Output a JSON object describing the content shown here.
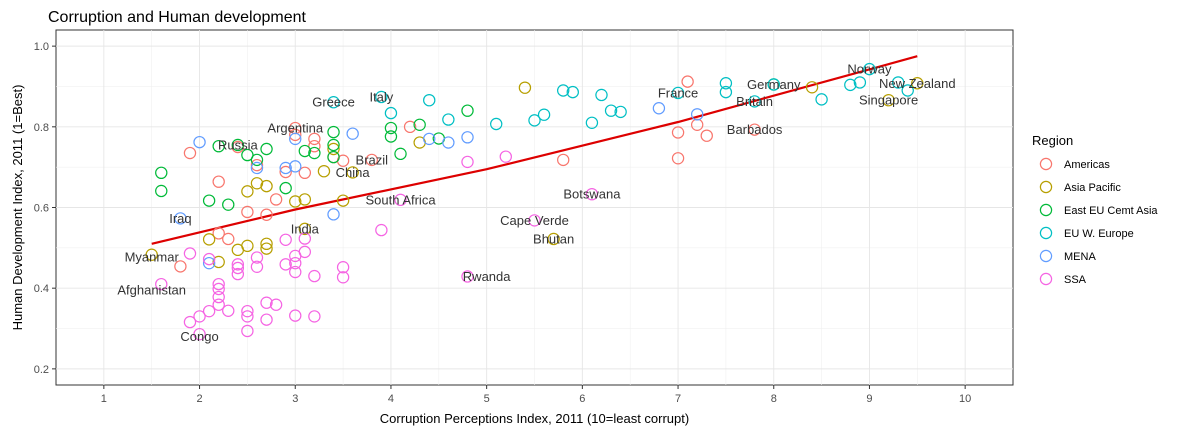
{
  "chart_data": {
    "type": "scatter",
    "title": "Corruption and Human development",
    "xlabel": "Corruption Perceptions Index, 2011 (10=least corrupt)",
    "ylabel": "Human Development Index, 2011 (1=Best)",
    "xlim": [
      0.5,
      10.5
    ],
    "ylim": [
      0.16,
      1.04
    ],
    "xticks": [
      1,
      2,
      3,
      4,
      5,
      6,
      7,
      8,
      9,
      10
    ],
    "yticks": [
      0.2,
      0.4,
      0.6,
      0.8,
      1.0
    ],
    "ytick_labels": [
      "0.2",
      "0.4",
      "0.6",
      "0.8",
      "1.0"
    ],
    "grid": true,
    "legend": {
      "title": "Region",
      "position": "right",
      "entries": [
        {
          "name": "Americas",
          "color": "#F8766D"
        },
        {
          "name": "Asia Pacific",
          "color": "#B79F00"
        },
        {
          "name": "East EU Cemt Asia",
          "color": "#00BA38"
        },
        {
          "name": "EU W. Europe",
          "color": "#00BFC4"
        },
        {
          "name": "MENA",
          "color": "#619CFF"
        },
        {
          "name": "SSA",
          "color": "#F564E3"
        }
      ]
    },
    "trend_line": {
      "color": "#DD0000",
      "points": [
        [
          1.5,
          0.51
        ],
        [
          3,
          0.595
        ],
        [
          5,
          0.695
        ],
        [
          7,
          0.812
        ],
        [
          9.5,
          0.975
        ]
      ]
    },
    "annotations": [
      {
        "text": "Congo",
        "x": 2.0,
        "y": 0.28
      },
      {
        "text": "Afghanistan",
        "x": 1.5,
        "y": 0.395
      },
      {
        "text": "Myanmar",
        "x": 1.5,
        "y": 0.477
      },
      {
        "text": "Iraq",
        "x": 1.8,
        "y": 0.573
      },
      {
        "text": "India",
        "x": 3.1,
        "y": 0.547
      },
      {
        "text": "Russia",
        "x": 2.4,
        "y": 0.755
      },
      {
        "text": "Argentina",
        "x": 3.0,
        "y": 0.797
      },
      {
        "text": "Greece",
        "x": 3.4,
        "y": 0.861
      },
      {
        "text": "Italy",
        "x": 3.9,
        "y": 0.874
      },
      {
        "text": "Brazil",
        "x": 3.8,
        "y": 0.718
      },
      {
        "text": "China",
        "x": 3.6,
        "y": 0.687
      },
      {
        "text": "South Africa",
        "x": 4.1,
        "y": 0.619
      },
      {
        "text": "Rwanda",
        "x": 5.0,
        "y": 0.429
      },
      {
        "text": "Cape Verde",
        "x": 5.5,
        "y": 0.568
      },
      {
        "text": "Bhutan",
        "x": 5.7,
        "y": 0.522
      },
      {
        "text": "Botswana",
        "x": 6.1,
        "y": 0.633
      },
      {
        "text": "France",
        "x": 7.0,
        "y": 0.884
      },
      {
        "text": "Britain",
        "x": 7.8,
        "y": 0.863
      },
      {
        "text": "Barbados",
        "x": 7.8,
        "y": 0.793
      },
      {
        "text": "Germany",
        "x": 8.0,
        "y": 0.905
      },
      {
        "text": "Norway",
        "x": 9.0,
        "y": 0.943
      },
      {
        "text": "New Zealand",
        "x": 9.5,
        "y": 0.908
      },
      {
        "text": "Singapore",
        "x": 9.2,
        "y": 0.866
      }
    ],
    "series": [
      {
        "name": "Americas",
        "color": "#F8766D",
        "points": [
          [
            1.8,
            0.454
          ],
          [
            1.9,
            0.735
          ],
          [
            2.2,
            0.664
          ],
          [
            2.2,
            0.536
          ],
          [
            2.3,
            0.522
          ],
          [
            2.4,
            0.75
          ],
          [
            2.5,
            0.589
          ],
          [
            2.6,
            0.705
          ],
          [
            2.7,
            0.582
          ],
          [
            2.8,
            0.62
          ],
          [
            2.9,
            0.688
          ],
          [
            3.0,
            0.797
          ],
          [
            3.0,
            0.78
          ],
          [
            3.1,
            0.686
          ],
          [
            3.2,
            0.77
          ],
          [
            3.2,
            0.752
          ],
          [
            3.4,
            0.725
          ],
          [
            3.5,
            0.716
          ],
          [
            3.8,
            0.718
          ],
          [
            4.2,
            0.8
          ],
          [
            5.8,
            0.718
          ],
          [
            7.0,
            0.786
          ],
          [
            7.0,
            0.722
          ],
          [
            7.1,
            0.912
          ],
          [
            7.2,
            0.805
          ],
          [
            7.3,
            0.778
          ],
          [
            7.8,
            0.793
          ]
        ]
      },
      {
        "name": "Asia Pacific",
        "color": "#B79F00",
        "points": [
          [
            1.5,
            0.483
          ],
          [
            2.1,
            0.521
          ],
          [
            2.2,
            0.465
          ],
          [
            2.4,
            0.495
          ],
          [
            2.5,
            0.64
          ],
          [
            2.5,
            0.505
          ],
          [
            2.6,
            0.66
          ],
          [
            2.7,
            0.653
          ],
          [
            2.7,
            0.51
          ],
          [
            2.7,
            0.498
          ],
          [
            3.0,
            0.615
          ],
          [
            3.1,
            0.62
          ],
          [
            3.1,
            0.547
          ],
          [
            3.3,
            0.69
          ],
          [
            3.4,
            0.745
          ],
          [
            3.5,
            0.617
          ],
          [
            3.6,
            0.687
          ],
          [
            4.3,
            0.761
          ],
          [
            5.4,
            0.897
          ],
          [
            5.7,
            0.522
          ],
          [
            8.4,
            0.898
          ],
          [
            9.2,
            0.866
          ],
          [
            9.5,
            0.908
          ]
        ]
      },
      {
        "name": "East EU Cemt Asia",
        "color": "#00BA38",
        "points": [
          [
            1.6,
            0.686
          ],
          [
            1.6,
            0.641
          ],
          [
            2.1,
            0.617
          ],
          [
            2.2,
            0.752
          ],
          [
            2.3,
            0.607
          ],
          [
            2.4,
            0.755
          ],
          [
            2.5,
            0.73
          ],
          [
            2.6,
            0.718
          ],
          [
            2.7,
            0.745
          ],
          [
            2.9,
            0.648
          ],
          [
            3.1,
            0.74
          ],
          [
            3.2,
            0.735
          ],
          [
            3.4,
            0.787
          ],
          [
            3.4,
            0.755
          ],
          [
            3.4,
            0.725
          ],
          [
            4.0,
            0.797
          ],
          [
            4.0,
            0.776
          ],
          [
            4.1,
            0.733
          ],
          [
            4.3,
            0.805
          ],
          [
            4.5,
            0.771
          ],
          [
            4.8,
            0.84
          ],
          [
            8.0,
            0.905
          ]
        ]
      },
      {
        "name": "EU W. Europe",
        "color": "#00BFC4",
        "points": [
          [
            3.4,
            0.861
          ],
          [
            3.9,
            0.874
          ],
          [
            4.0,
            0.834
          ],
          [
            4.4,
            0.866
          ],
          [
            4.6,
            0.818
          ],
          [
            5.1,
            0.807
          ],
          [
            5.5,
            0.816
          ],
          [
            5.6,
            0.83
          ],
          [
            5.8,
            0.89
          ],
          [
            5.9,
            0.886
          ],
          [
            6.1,
            0.81
          ],
          [
            6.2,
            0.879
          ],
          [
            6.3,
            0.84
          ],
          [
            6.4,
            0.837
          ],
          [
            7.0,
            0.884
          ],
          [
            7.5,
            0.908
          ],
          [
            7.5,
            0.886
          ],
          [
            7.8,
            0.863
          ],
          [
            8.0,
            0.905
          ],
          [
            8.5,
            0.868
          ],
          [
            8.8,
            0.904
          ],
          [
            8.9,
            0.91
          ],
          [
            9.0,
            0.943
          ],
          [
            9.3,
            0.91
          ],
          [
            9.4,
            0.89
          ]
        ]
      },
      {
        "name": "MENA",
        "color": "#619CFF",
        "points": [
          [
            1.8,
            0.573
          ],
          [
            2.0,
            0.762
          ],
          [
            2.1,
            0.462
          ],
          [
            2.6,
            0.698
          ],
          [
            2.9,
            0.698
          ],
          [
            3.0,
            0.77
          ],
          [
            3.4,
            0.583
          ],
          [
            3.6,
            0.783
          ],
          [
            4.4,
            0.77
          ],
          [
            4.6,
            0.761
          ],
          [
            4.8,
            0.774
          ],
          [
            6.8,
            0.846
          ],
          [
            7.2,
            0.831
          ],
          [
            3.0,
            0.702
          ]
        ]
      },
      {
        "name": "SSA",
        "color": "#F564E3",
        "points": [
          [
            1.6,
            0.41
          ],
          [
            1.9,
            0.316
          ],
          [
            2.0,
            0.33
          ],
          [
            2.0,
            0.286
          ],
          [
            2.1,
            0.343
          ],
          [
            2.2,
            0.398
          ],
          [
            2.2,
            0.378
          ],
          [
            2.2,
            0.359
          ],
          [
            2.3,
            0.344
          ],
          [
            2.4,
            0.459
          ],
          [
            2.4,
            0.45
          ],
          [
            2.4,
            0.435
          ],
          [
            2.5,
            0.343
          ],
          [
            2.5,
            0.33
          ],
          [
            2.5,
            0.294
          ],
          [
            2.6,
            0.453
          ],
          [
            2.7,
            0.364
          ],
          [
            2.7,
            0.322
          ],
          [
            2.8,
            0.359
          ],
          [
            2.9,
            0.459
          ],
          [
            3.0,
            0.48
          ],
          [
            3.0,
            0.462
          ],
          [
            3.0,
            0.44
          ],
          [
            3.0,
            0.332
          ],
          [
            3.1,
            0.523
          ],
          [
            3.2,
            0.33
          ],
          [
            3.2,
            0.43
          ],
          [
            3.5,
            0.452
          ],
          [
            3.5,
            0.427
          ],
          [
            3.9,
            0.544
          ],
          [
            4.1,
            0.619
          ],
          [
            4.8,
            0.713
          ],
          [
            4.8,
            0.429
          ],
          [
            5.2,
            0.726
          ],
          [
            5.5,
            0.568
          ],
          [
            6.1,
            0.633
          ],
          [
            1.9,
            0.486
          ],
          [
            2.2,
            0.41
          ],
          [
            2.6,
            0.476
          ],
          [
            2.9,
            0.52
          ],
          [
            2.1,
            0.472
          ],
          [
            3.1,
            0.49
          ]
        ]
      }
    ]
  }
}
